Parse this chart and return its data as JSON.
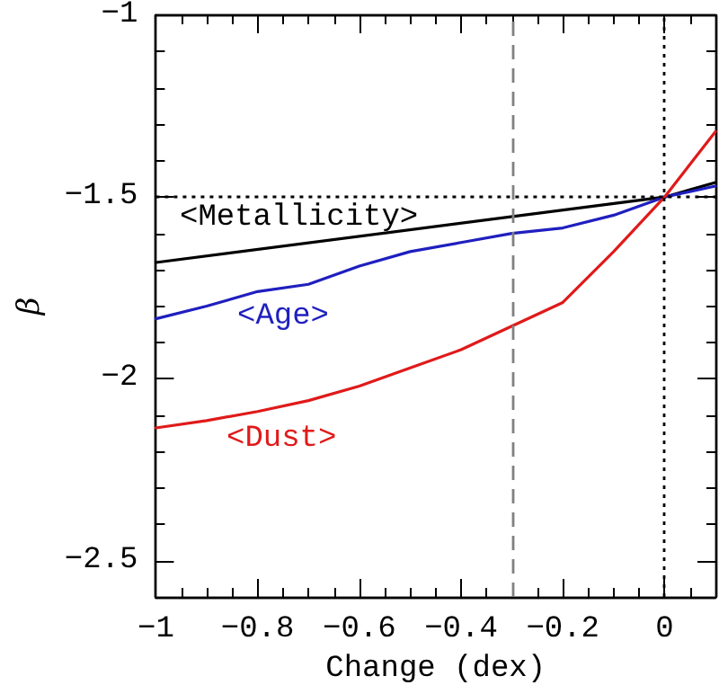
{
  "chart_data": {
    "type": "line",
    "xlabel": "Change (dex)",
    "ylabel": "β",
    "xlim": [
      -1,
      0.1
    ],
    "ylim": [
      -2.6,
      -1
    ],
    "xticks": [
      -1,
      -0.8,
      -0.6,
      -0.4,
      -0.2,
      0
    ],
    "yticks": [
      -2.5,
      -2,
      -1.5,
      -1
    ],
    "grid": false,
    "legend": false,
    "marker": "none",
    "line_style": "solid",
    "series": [
      {
        "name": "<Metallicity>",
        "color": "#000000",
        "x": [
          -1,
          0,
          0.1
        ],
        "values": [
          -1.68,
          -1.5,
          -1.46
        ]
      },
      {
        "name": "<Age>",
        "color": "#1f1fbf",
        "x": [
          -1,
          -0.9,
          -0.8,
          -0.7,
          -0.6,
          -0.5,
          -0.4,
          -0.3,
          -0.2,
          -0.1,
          0,
          0.1
        ],
        "values": [
          -1.835,
          -1.8,
          -1.76,
          -1.74,
          -1.69,
          -1.65,
          -1.625,
          -1.6,
          -1.585,
          -1.55,
          -1.5,
          -1.47
        ]
      },
      {
        "name": "<Dust>",
        "color": "#e01a1a",
        "x": [
          -1,
          -0.9,
          -0.8,
          -0.7,
          -0.6,
          -0.5,
          -0.4,
          -0.3,
          -0.2,
          -0.1,
          0,
          0.1
        ],
        "values": [
          -2.135,
          -2.115,
          -2.09,
          -2.06,
          -2.02,
          -1.97,
          -1.92,
          -1.855,
          -1.79,
          -1.65,
          -1.5,
          -1.32
        ]
      }
    ],
    "ref_lines": [
      {
        "axis": "x",
        "value": -0.3,
        "color": "#808080",
        "line_style": "dashed"
      },
      {
        "axis": "x",
        "value": 0,
        "color": "#000000",
        "line_style": "dotted"
      },
      {
        "axis": "y",
        "value": -1.5,
        "color": "#000000",
        "line_style": "dotted"
      }
    ]
  }
}
